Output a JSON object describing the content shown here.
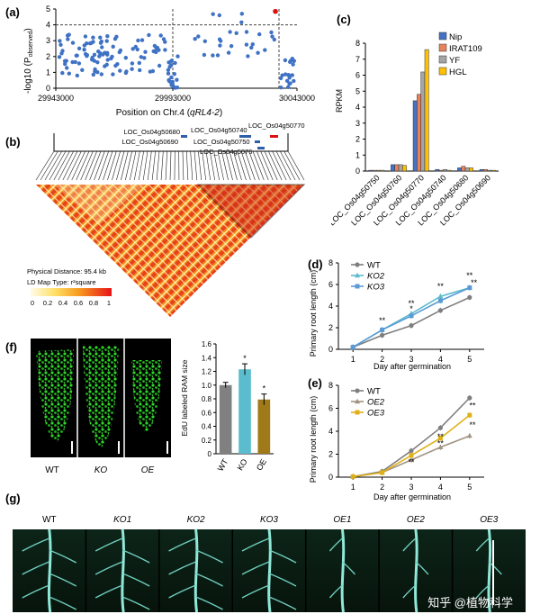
{
  "panel_labels": {
    "a": "(a)",
    "b": "(b)",
    "c": "(c)",
    "d": "(d)",
    "e": "(e)",
    "f": "(f)",
    "g": "(g)"
  },
  "panel_a": {
    "ylabel": "-log10 (P",
    "ylabel_sub": "observed",
    "ylabel_close": ")",
    "y_ticks": [
      "0",
      "1",
      "2",
      "3",
      "4",
      "5"
    ],
    "x_ticks": [
      "29943000",
      "29993000",
      "30043000"
    ],
    "xlabel": "Position on Chr.4 (",
    "xlabel_italic": "qRL4-2",
    "xlabel_close": ")"
  },
  "panel_b": {
    "genes": [
      "LOC_Os04g50680",
      "LOC_Os04g50690",
      "LOC_Os04g50740",
      "LOC_Os04g50750",
      "LOC_Os04g5076",
      "LOC_Os04g50770"
    ],
    "legend_distance": "Physical Distance: 95.4 kb",
    "legend_type": "LD Map Type: r²square",
    "scale_ticks": [
      "0",
      "0.2",
      "0.4",
      "0.6",
      "0.8",
      "1"
    ]
  },
  "chart_data": [
    {
      "type": "bar",
      "title": "",
      "ylabel": "RPKM",
      "ylim": [
        0,
        8
      ],
      "y_ticks": [
        "0",
        "1",
        "2",
        "3",
        "4",
        "5",
        "6",
        "7",
        "8"
      ],
      "categories": [
        "LOC_Os04g50750",
        "LOC_Os04g50760",
        "LOC_Os04g50770",
        "LOC_Os04g50740",
        "LOC_Os04g50680",
        "LOC_Os04g50690"
      ],
      "series": [
        {
          "name": "Nip",
          "color": "#4472c4",
          "values": [
            0.05,
            0.4,
            4.4,
            0.1,
            0.2,
            0.1
          ]
        },
        {
          "name": "IRAT109",
          "color": "#e8825a",
          "values": [
            0.05,
            0.4,
            4.8,
            0.05,
            0.3,
            0.1
          ]
        },
        {
          "name": "YF",
          "color": "#a5a5a5",
          "values": [
            0.05,
            0.4,
            6.2,
            0.1,
            0.2,
            0.05
          ]
        },
        {
          "name": "HGL",
          "color": "#ffc000",
          "values": [
            0.05,
            0.35,
            7.6,
            0.05,
            0.2,
            0.05
          ]
        }
      ]
    },
    {
      "type": "line",
      "ylabel": "Primary root length (cm)",
      "xlabel": "Day after germination",
      "x": [
        1,
        2,
        3,
        4,
        5
      ],
      "ylim": [
        0,
        8
      ],
      "y_ticks": [
        "0",
        "2",
        "4",
        "6",
        "8"
      ],
      "x_ticks": [
        "1",
        "2",
        "3",
        "4",
        "5"
      ],
      "series": [
        {
          "name": "WT",
          "color": "#7f7f7f",
          "marker": "circle",
          "values": [
            0.2,
            1.3,
            2.2,
            3.6,
            4.8
          ]
        },
        {
          "name": "KO2",
          "color": "#5bbccd",
          "marker": "triangle",
          "values": [
            0.2,
            1.8,
            3.3,
            4.9,
            5.7
          ]
        },
        {
          "name": "KO3",
          "color": "#5a9bd5",
          "marker": "square",
          "values": [
            0.2,
            1.8,
            3.1,
            4.5,
            5.7
          ]
        }
      ],
      "annotations": [
        {
          "x": 2,
          "y": 2.4,
          "text": "**"
        },
        {
          "x": 3,
          "y": 4.0,
          "text": "**"
        },
        {
          "x": 3,
          "y": 3.5,
          "text": "*"
        },
        {
          "x": 4,
          "y": 5.6,
          "text": "**"
        },
        {
          "x": 5,
          "y": 6.6,
          "text": "**"
        },
        {
          "x": 5.15,
          "y": 5.9,
          "text": "**"
        }
      ]
    },
    {
      "type": "line",
      "ylabel": "Primary root length (cm)",
      "xlabel": "Day after germination",
      "x": [
        1,
        2,
        3,
        4,
        5
      ],
      "ylim": [
        0,
        8
      ],
      "y_ticks": [
        "0",
        "2",
        "4",
        "6",
        "8"
      ],
      "x_ticks": [
        "1",
        "2",
        "3",
        "4",
        "5"
      ],
      "series": [
        {
          "name": "WT",
          "color": "#7f7f7f",
          "marker": "circle",
          "values": [
            0.05,
            0.5,
            2.3,
            4.3,
            6.9
          ]
        },
        {
          "name": "OE2",
          "color": "#a09383",
          "marker": "triangle",
          "values": [
            0.05,
            0.4,
            1.5,
            2.6,
            3.6
          ]
        },
        {
          "name": "OE3",
          "color": "#e0b018",
          "marker": "square",
          "values": [
            0.05,
            0.4,
            1.9,
            3.4,
            5.4
          ]
        }
      ],
      "annotations": [
        {
          "x": 3,
          "y": 1.1,
          "text": "**"
        },
        {
          "x": 4,
          "y": 3.3,
          "text": "**"
        },
        {
          "x": 4,
          "y": 2.7,
          "text": "**"
        },
        {
          "x": 5.1,
          "y": 6.0,
          "text": "**"
        },
        {
          "x": 5.1,
          "y": 4.3,
          "text": "**"
        }
      ]
    },
    {
      "type": "bar",
      "ylabel": "EdU labeled RAM size",
      "ylim": [
        0,
        1.6
      ],
      "y_ticks": [
        "0",
        "0.2",
        "0.4",
        "0.6",
        "0.8",
        "1.0",
        "1.2",
        "1.4",
        "1.6"
      ],
      "categories": [
        "WT",
        "KO",
        "OE"
      ],
      "values": [
        1.0,
        1.23,
        0.79
      ],
      "errors": [
        0.04,
        0.08,
        0.08
      ],
      "colors": [
        "#808080",
        "#5bbccd",
        "#a07a18"
      ],
      "annotations": [
        "",
        "*",
        "*"
      ]
    }
  ],
  "panel_f": {
    "micro_labels": [
      "WT",
      "KO",
      "OE"
    ]
  },
  "panel_g": {
    "labels": [
      "WT",
      "KO1",
      "KO2",
      "KO3",
      "OE1",
      "OE2",
      "OE3"
    ]
  },
  "watermark": "知乎 @植物科学"
}
